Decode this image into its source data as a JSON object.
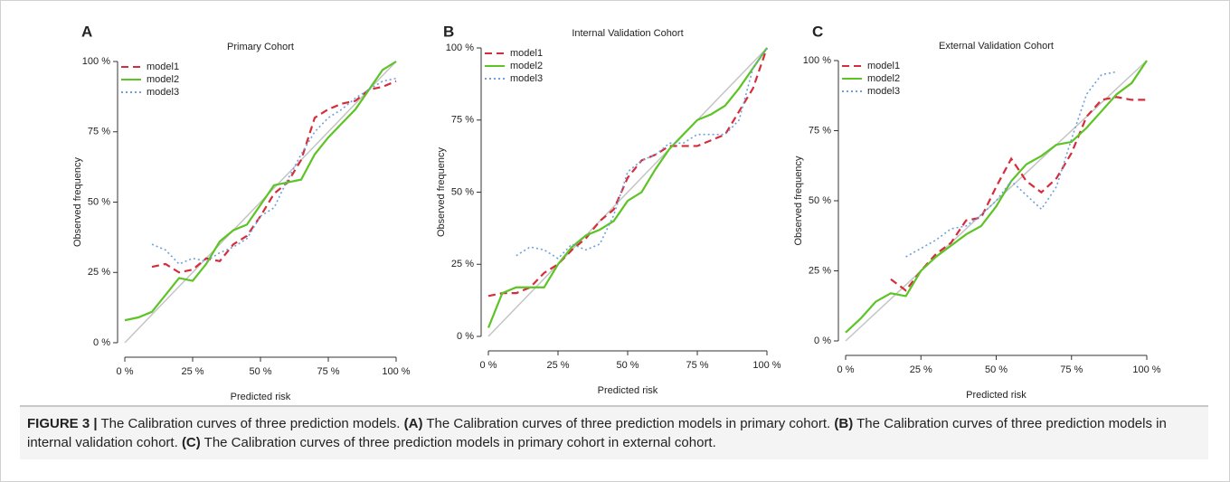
{
  "chart_data": [
    {
      "type": "line",
      "panel": "A",
      "title": "Primary Cohort",
      "xlabel": "Predicted risk",
      "ylabel": "Observed frequency",
      "x": [
        0,
        5,
        10,
        15,
        20,
        25,
        30,
        35,
        40,
        45,
        50,
        55,
        60,
        65,
        70,
        75,
        80,
        85,
        90,
        95,
        100
      ],
      "series": [
        {
          "name": "model1",
          "color": "#d62d3a",
          "dash": "dashed",
          "values": [
            null,
            null,
            27,
            28,
            25,
            26,
            30,
            29,
            35,
            38,
            45,
            53,
            57,
            65,
            80,
            83,
            85,
            86,
            90,
            91,
            93
          ]
        },
        {
          "name": "model2",
          "color": "#5cc424",
          "dash": "solid",
          "values": [
            8,
            9,
            11,
            17,
            23,
            22,
            28,
            36,
            40,
            42,
            49,
            56,
            57,
            58,
            67,
            73,
            78,
            83,
            90,
            97,
            100
          ]
        },
        {
          "name": "model3",
          "color": "#6f9fdb",
          "dash": "dotted",
          "values": [
            null,
            null,
            35,
            33,
            28,
            30,
            29,
            32,
            34,
            37,
            45,
            48,
            58,
            67,
            75,
            80,
            83,
            87,
            90,
            93,
            94
          ]
        }
      ],
      "xlim": [
        0,
        100
      ],
      "ylim": [
        0,
        100
      ],
      "xticks": [
        {
          "value": 0,
          "label": "0 %"
        },
        {
          "value": 25,
          "label": "25 %"
        },
        {
          "value": 50,
          "label": "50 %"
        },
        {
          "value": 75,
          "label": "75 %"
        },
        {
          "value": 100,
          "label": "100 %"
        }
      ],
      "yticks": [
        {
          "value": 0,
          "label": "0 %"
        },
        {
          "value": 25,
          "label": "25 %"
        },
        {
          "value": 50,
          "label": "50 %"
        },
        {
          "value": 75,
          "label": "75 %"
        },
        {
          "value": 100,
          "label": "100 %"
        }
      ],
      "legend": "top-left"
    },
    {
      "type": "line",
      "panel": "B",
      "title": "Internal Validation Cohort",
      "xlabel": "Predicted risk",
      "ylabel": "Observed frequency",
      "x": [
        0,
        5,
        10,
        15,
        20,
        25,
        30,
        35,
        40,
        45,
        50,
        55,
        60,
        65,
        70,
        75,
        80,
        85,
        90,
        95,
        100
      ],
      "series": [
        {
          "name": "model1",
          "color": "#d62d3a",
          "dash": "dashed",
          "values": [
            14,
            15,
            15,
            17,
            22,
            25,
            30,
            34,
            40,
            44,
            55,
            61,
            63,
            66,
            66,
            66,
            68,
            70,
            78,
            86,
            100
          ]
        },
        {
          "name": "model2",
          "color": "#5cc424",
          "dash": "solid",
          "values": [
            3,
            15,
            17,
            17,
            17,
            25,
            31,
            35,
            37,
            40,
            47,
            50,
            58,
            65,
            70,
            75,
            77,
            80,
            86,
            93,
            100
          ]
        },
        {
          "name": "model3",
          "color": "#6f9fdb",
          "dash": "dotted",
          "values": [
            null,
            null,
            28,
            31,
            30,
            27,
            32,
            30,
            32,
            42,
            57,
            61,
            63,
            67,
            67,
            70,
            70,
            70,
            75,
            93,
            100
          ]
        }
      ],
      "xlim": [
        0,
        100
      ],
      "ylim": [
        0,
        100
      ],
      "xticks": [
        {
          "value": 0,
          "label": "0 %"
        },
        {
          "value": 25,
          "label": "25 %"
        },
        {
          "value": 50,
          "label": "50 %"
        },
        {
          "value": 75,
          "label": "75 %"
        },
        {
          "value": 100,
          "label": "100 %"
        }
      ],
      "yticks": [
        {
          "value": 0,
          "label": "0 %"
        },
        {
          "value": 25,
          "label": "25 %"
        },
        {
          "value": 50,
          "label": "50 %"
        },
        {
          "value": 75,
          "label": "75 %"
        },
        {
          "value": 100,
          "label": "100 %"
        }
      ],
      "legend": "top-left"
    },
    {
      "type": "line",
      "panel": "C",
      "title": "External Validation Cohort",
      "xlabel": "Predicted risk",
      "ylabel": "Observed frequency",
      "x": [
        0,
        5,
        10,
        15,
        20,
        25,
        30,
        35,
        40,
        45,
        50,
        55,
        60,
        65,
        70,
        75,
        80,
        85,
        90,
        95,
        100
      ],
      "series": [
        {
          "name": "model1",
          "color": "#d62d3a",
          "dash": "dashed",
          "values": [
            null,
            null,
            null,
            22,
            18,
            25,
            31,
            35,
            43,
            44,
            55,
            65,
            57,
            53,
            58,
            67,
            80,
            86,
            87,
            86,
            86
          ]
        },
        {
          "name": "model2",
          "color": "#5cc424",
          "dash": "solid",
          "values": [
            3,
            8,
            14,
            17,
            16,
            25,
            30,
            34,
            38,
            41,
            48,
            57,
            63,
            66,
            70,
            71,
            76,
            82,
            88,
            92,
            100
          ]
        },
        {
          "name": "model3",
          "color": "#6f9fdb",
          "dash": "dotted",
          "values": [
            null,
            null,
            null,
            null,
            30,
            33,
            36,
            40,
            41,
            45,
            50,
            57,
            52,
            47,
            55,
            72,
            88,
            95,
            96,
            null,
            null
          ]
        }
      ],
      "xlim": [
        0,
        100
      ],
      "ylim": [
        0,
        100
      ],
      "xticks": [
        {
          "value": 0,
          "label": "0 %"
        },
        {
          "value": 25,
          "label": "25 %"
        },
        {
          "value": 50,
          "label": "50 %"
        },
        {
          "value": 75,
          "label": "75 %"
        },
        {
          "value": 100,
          "label": "100 %"
        }
      ],
      "yticks": [
        {
          "value": 0,
          "label": "0 %"
        },
        {
          "value": 25,
          "label": "25 %"
        },
        {
          "value": 50,
          "label": "50 %"
        },
        {
          "value": 75,
          "label": "75 %"
        },
        {
          "value": 100,
          "label": "100 %"
        }
      ],
      "legend": "top-left"
    }
  ],
  "caption": [
    "FIGURE 3 |",
    "The Calibration curves of three prediction models.",
    "(A)",
    "The Calibration curves of three prediction models in primary cohort.",
    "(B)",
    "The Calibration curves of three prediction models in internal validation cohort.",
    "(C)",
    "The Calibration curves of three prediction models in primary cohort in external cohort."
  ]
}
